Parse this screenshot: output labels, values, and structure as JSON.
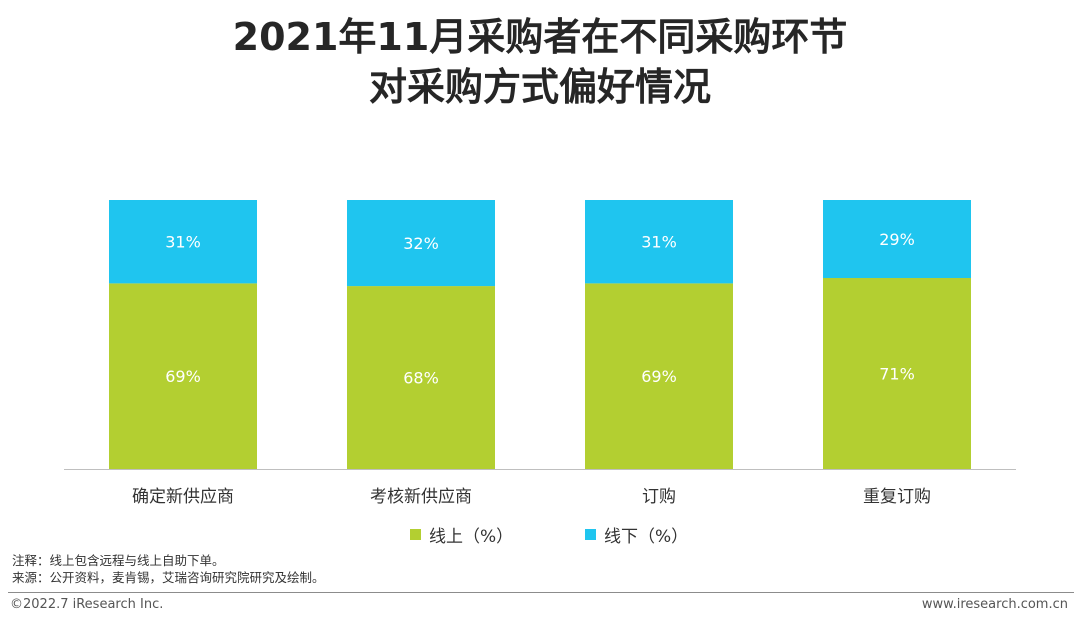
{
  "header": {
    "title_line1": "2021年11月采购者在不同采购环节",
    "title_line2": "对采购方式偏好情况"
  },
  "chart_data": {
    "type": "bar",
    "stacked": true,
    "percent_stacked": true,
    "categories": [
      "确定新供应商",
      "考核新供应商",
      "订购",
      "重复订购"
    ],
    "series": [
      {
        "name": "线上（%）",
        "values": [
          69,
          68,
          69,
          71
        ],
        "color": "#b3cf31"
      },
      {
        "name": "线下（%）",
        "values": [
          31,
          32,
          31,
          29
        ],
        "color": "#1fc5ef"
      }
    ],
    "ylim": [
      0,
      100
    ],
    "legend_position": "bottom",
    "grid": false,
    "data_label_suffix": "%"
  },
  "notes": {
    "note": "注释：线上包含远程与线上自助下单。",
    "source": "来源：公开资料，麦肯锡，艾瑞咨询研究院研究及绘制。"
  },
  "footer": {
    "copyright": "©2022.7 iResearch Inc.",
    "website": "www.iresearch.com.cn"
  }
}
